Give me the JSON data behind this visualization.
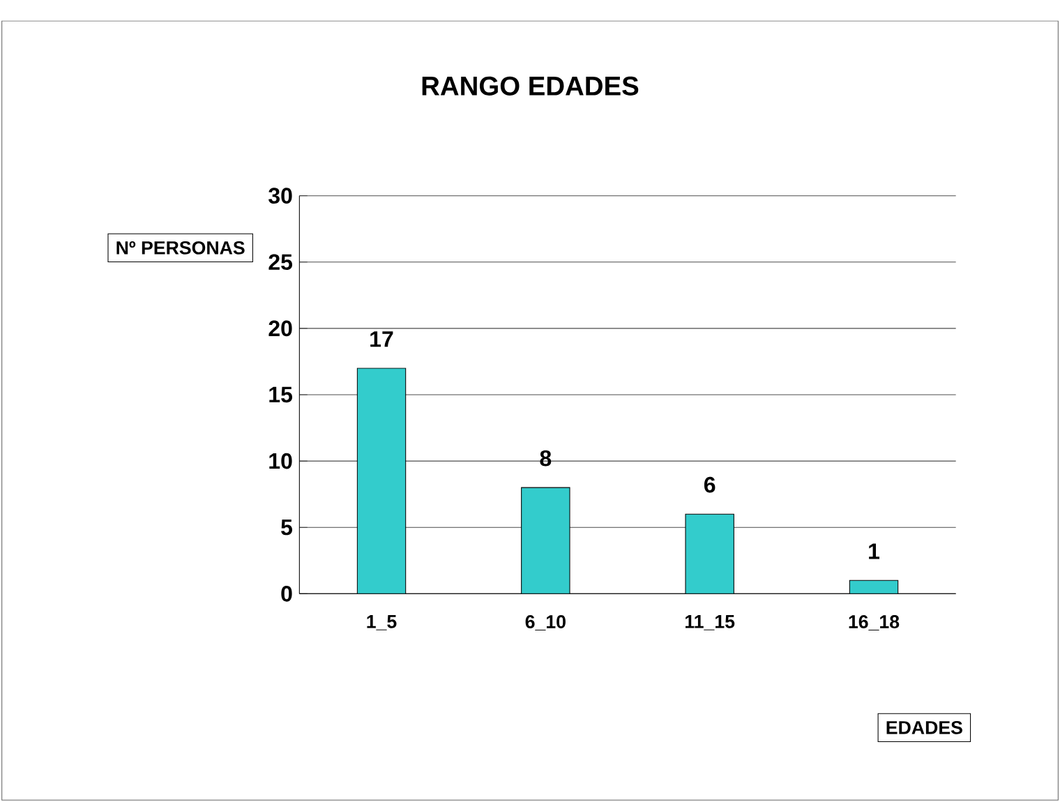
{
  "chart_data": {
    "type": "bar",
    "title": "RANGO EDADES",
    "xlabel": "EDADES",
    "ylabel": "Nº PERSONAS",
    "categories": [
      "1_5",
      "6_10",
      "11_15",
      "16_18"
    ],
    "values": [
      17,
      8,
      6,
      1
    ],
    "color": "#33cccc",
    "ylim": [
      0,
      30
    ],
    "yticks": [
      0,
      5,
      10,
      15,
      20,
      25,
      30
    ],
    "grid": "y",
    "data_labels": true
  }
}
